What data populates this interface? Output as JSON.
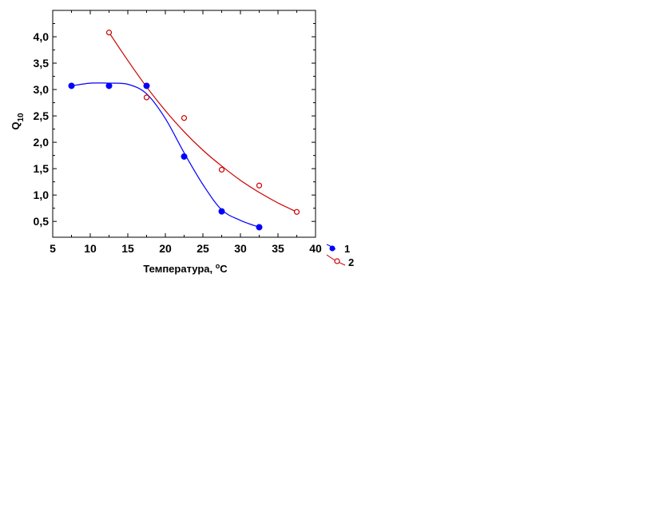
{
  "chart_data": {
    "type": "scatter",
    "title": "",
    "xlabel": "Температура, ",
    "xlabel_sup": "o",
    "xlabel_unit": "C",
    "ylabel_main": "Q",
    "ylabel_sub": "10",
    "xlim": [
      5,
      40
    ],
    "ylim": [
      0.2,
      4.5
    ],
    "x_ticks": [
      5,
      10,
      15,
      20,
      25,
      30,
      35,
      40
    ],
    "x_tick_labels": [
      "5",
      "10",
      "15",
      "20",
      "25",
      "30",
      "35",
      "40"
    ],
    "y_ticks": [
      0.5,
      1.0,
      1.5,
      2.0,
      2.5,
      3.0,
      3.5,
      4.0
    ],
    "y_tick_labels": [
      "0,5",
      "1,0",
      "1,5",
      "2,0",
      "2,5",
      "3,0",
      "3,5",
      "4,0"
    ],
    "grid": false,
    "legend_position": "bottom-right, outside plot",
    "series": [
      {
        "name": "1",
        "color": "#0000ff",
        "marker": "filled-circle",
        "x": [
          7.5,
          12.5,
          17.5,
          22.5,
          27.5,
          32.5
        ],
        "y": [
          3.07,
          3.07,
          3.07,
          1.73,
          0.69,
          0.39
        ],
        "curve": [
          [
            7.5,
            3.07
          ],
          [
            10,
            3.12
          ],
          [
            12.5,
            3.12
          ],
          [
            15,
            3.1
          ],
          [
            17.5,
            2.92
          ],
          [
            20,
            2.45
          ],
          [
            22.5,
            1.8
          ],
          [
            25,
            1.2
          ],
          [
            27.5,
            0.72
          ],
          [
            30,
            0.52
          ],
          [
            32.5,
            0.39
          ]
        ]
      },
      {
        "name": "2",
        "color": "#cc0000",
        "marker": "open-circle",
        "x": [
          12.5,
          17.5,
          22.5,
          27.5,
          32.5,
          37.5
        ],
        "y": [
          4.08,
          2.85,
          2.46,
          1.48,
          1.18,
          0.68
        ],
        "curve": [
          [
            12.5,
            4.08
          ],
          [
            15,
            3.55
          ],
          [
            17.5,
            3.05
          ],
          [
            20,
            2.6
          ],
          [
            22.5,
            2.2
          ],
          [
            25,
            1.85
          ],
          [
            27.5,
            1.55
          ],
          [
            30,
            1.28
          ],
          [
            32.5,
            1.05
          ],
          [
            35,
            0.85
          ],
          [
            37.5,
            0.68
          ]
        ]
      }
    ]
  }
}
